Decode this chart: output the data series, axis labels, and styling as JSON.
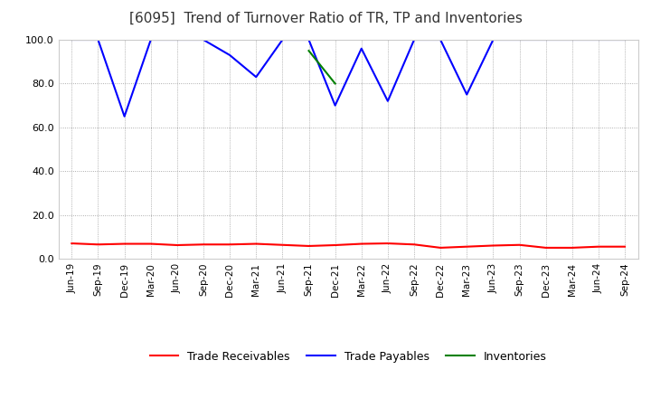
{
  "title": "[6095]  Trend of Turnover Ratio of TR, TP and Inventories",
  "title_fontsize": 11,
  "background_color": "#ffffff",
  "grid_color": "#999999",
  "ylim": [
    0.0,
    100.0
  ],
  "yticks": [
    0.0,
    20.0,
    40.0,
    60.0,
    80.0,
    100.0
  ],
  "x_labels": [
    "Jun-19",
    "Sep-19",
    "Dec-19",
    "Mar-20",
    "Jun-20",
    "Sep-20",
    "Dec-20",
    "Mar-21",
    "Jun-21",
    "Sep-21",
    "Dec-21",
    "Mar-22",
    "Jun-22",
    "Sep-22",
    "Dec-22",
    "Mar-23",
    "Jun-23",
    "Sep-23",
    "Dec-23",
    "Mar-24",
    "Jun-24",
    "Sep-24"
  ],
  "trade_receivables": [
    7.0,
    6.5,
    6.8,
    6.8,
    6.2,
    6.5,
    6.5,
    6.8,
    6.3,
    5.8,
    6.2,
    6.8,
    7.0,
    6.5,
    5.0,
    5.5,
    6.0,
    6.3,
    5.0,
    5.0,
    5.5,
    5.5
  ],
  "trade_payables": [
    100.0,
    100.0,
    65.0,
    100.0,
    100.0,
    100.0,
    93.0,
    83.0,
    100.0,
    100.0,
    70.0,
    96.0,
    72.0,
    100.0,
    100.0,
    75.0,
    100.0,
    100.0,
    100.0,
    100.0,
    100.0,
    100.0
  ],
  "inventories": [
    null,
    null,
    null,
    null,
    null,
    null,
    null,
    null,
    null,
    95.0,
    80.0,
    null,
    null,
    null,
    null,
    null,
    null,
    null,
    null,
    null,
    null,
    null
  ],
  "tr_color": "#ff0000",
  "tp_color": "#0000ff",
  "inv_color": "#008000",
  "legend_labels": [
    "Trade Receivables",
    "Trade Payables",
    "Inventories"
  ],
  "line_width": 1.5,
  "tick_fontsize": 7.5,
  "ytick_fontsize": 8.0,
  "legend_fontsize": 9
}
